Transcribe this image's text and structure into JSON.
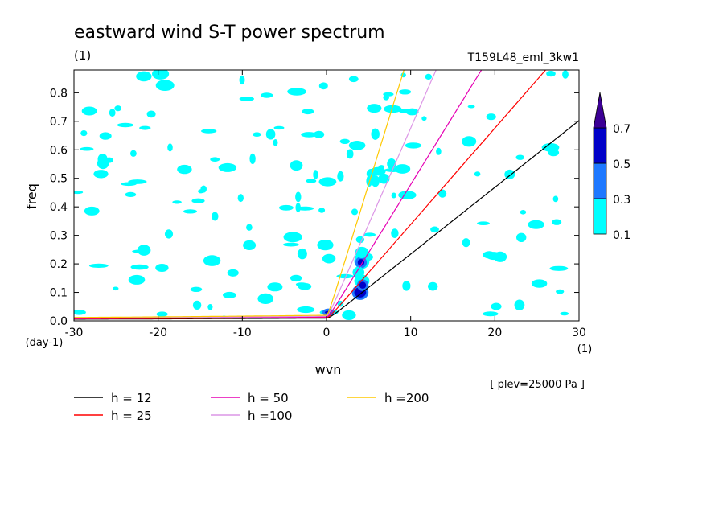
{
  "chart_data": {
    "type": "contour",
    "title": "eastward wind S-T power spectrum",
    "units_left": "(1)",
    "experiment": "T159L48_eml_3kw1",
    "xlabel": "wvn",
    "x_units": "(1)",
    "ylabel": "freq",
    "y_units": "(day-1)",
    "xlim": [
      -30,
      30
    ],
    "ylim": [
      0,
      0.88
    ],
    "xticks": [
      {
        "v": -30,
        "label": "-30"
      },
      {
        "v": -20,
        "label": "-20"
      },
      {
        "v": -10,
        "label": "-10"
      },
      {
        "v": 0,
        "label": "0"
      },
      {
        "v": 10,
        "label": "10"
      },
      {
        "v": 20,
        "label": "20"
      },
      {
        "v": 30,
        "label": "30"
      }
    ],
    "yticks": [
      {
        "v": 0.0,
        "label": "0.0"
      },
      {
        "v": 0.1,
        "label": "0.1"
      },
      {
        "v": 0.2,
        "label": "0.2"
      },
      {
        "v": 0.3,
        "label": "0.3"
      },
      {
        "v": 0.4,
        "label": "0.4"
      },
      {
        "v": 0.5,
        "label": "0.5"
      },
      {
        "v": 0.6,
        "label": "0.6"
      },
      {
        "v": 0.7,
        "label": "0.7"
      },
      {
        "v": 0.8,
        "label": "0.8"
      }
    ],
    "colorbar": {
      "levels": [
        "0.1",
        "0.3",
        "0.5",
        "0.7"
      ],
      "colors": [
        "#00ffff",
        "#1e78ff",
        "#0000c8",
        "#3c0096"
      ]
    },
    "note": "[ plev=25000 Pa ]",
    "dispersion_curves": [
      {
        "label": "h = 12",
        "h": 12,
        "color": "#000000"
      },
      {
        "label": "h = 25",
        "h": 25,
        "color": "#ff0000"
      },
      {
        "label": "h = 50",
        "h": 50,
        "color": "#e600b4"
      },
      {
        "label": "h =100",
        "h": 100,
        "color": "#dc96e6"
      },
      {
        "label": "h =200",
        "h": 200,
        "color": "#ffc800"
      }
    ],
    "contour_patches": [
      {
        "x": 4.2,
        "y": 0.21,
        "rx": 0.9,
        "ry": 0.028,
        "level": 1
      },
      {
        "x": 4.2,
        "y": 0.14,
        "rx": 0.9,
        "ry": 0.022,
        "level": 1
      },
      {
        "x": 4.0,
        "y": 0.1,
        "rx": 0.7,
        "ry": 0.018,
        "level": 2
      },
      {
        "x": 4.1,
        "y": 0.205,
        "rx": 0.4,
        "ry": 0.012,
        "level": 2
      },
      {
        "x": 4.3,
        "y": 0.125,
        "rx": 0.4,
        "ry": 0.012,
        "level": 2
      },
      {
        "x": 4.2,
        "y": 0.24,
        "rx": 0.8,
        "ry": 0.02,
        "level": 1
      },
      {
        "x": 3.8,
        "y": 0.17,
        "rx": 0.7,
        "ry": 0.02,
        "level": 1
      },
      {
        "x": 0.3,
        "y": 0.03,
        "rx": 1.1,
        "ry": 0.01,
        "level": 1
      },
      {
        "x": 0.2,
        "y": 0.03,
        "rx": 0.4,
        "ry": 0.005,
        "level": 2
      },
      {
        "x": 4.0,
        "y": 0.285,
        "rx": 0.5,
        "ry": 0.012,
        "level": 1
      },
      {
        "x": 5.8,
        "y": 0.49,
        "rx": 0.5,
        "ry": 0.02,
        "level": 1
      },
      {
        "x": 5.8,
        "y": 0.655,
        "rx": 0.5,
        "ry": 0.02,
        "level": 1
      },
      {
        "x": 11.6,
        "y": 0.71,
        "rx": 0.3,
        "ry": 0.008,
        "level": 1
      },
      {
        "x": 8.0,
        "y": 0.44,
        "rx": 0.3,
        "ry": 0.01,
        "level": 1
      }
    ]
  }
}
